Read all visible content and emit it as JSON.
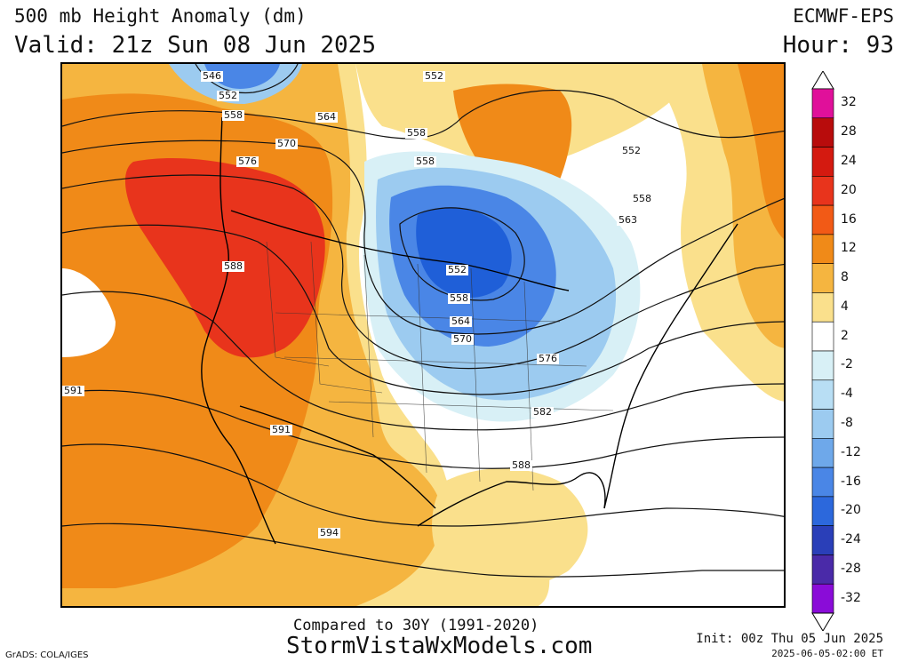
{
  "header": {
    "title": "500 mb Height Anomaly (dm)",
    "valid": "Valid: 21z Sun 08 Jun 2025",
    "model": "ECMWF-EPS",
    "hour": "Hour: 93"
  },
  "map": {
    "contour_labels": [
      "546",
      "552",
      "558",
      "564",
      "570",
      "576",
      "588",
      "591",
      "591",
      "594",
      "558",
      "558",
      "552",
      "552",
      "558",
      "564",
      "570",
      "576",
      "582",
      "588",
      "552",
      "558",
      "563"
    ],
    "anomaly_colors": {
      "strong_positive": "#e8341c",
      "positive": "#f08a18",
      "weak_positive": "#f5b540",
      "slight_positive": "#fae08c",
      "slight_negative": "#d8f0f6",
      "negative": "#9ccbf0",
      "strong_negative": "#4a86e6",
      "very_strong_negative": "#1f5fd8"
    }
  },
  "colorbar": {
    "ticks": [
      "32",
      "28",
      "24",
      "20",
      "16",
      "12",
      "8",
      "4",
      "2",
      "-2",
      "-4",
      "-8",
      "-12",
      "-16",
      "-20",
      "-24",
      "-28",
      "-32"
    ],
    "colors": [
      "#e0109a",
      "#b80c0c",
      "#d41a10",
      "#e8341c",
      "#f25a16",
      "#f08a18",
      "#f5b540",
      "#fae08c",
      "#ffffff",
      "#d8f0f6",
      "#b8def4",
      "#9ccbf0",
      "#6ea8ea",
      "#4a86e6",
      "#2c68dc",
      "#2a3fb8",
      "#4a2aa8",
      "#8a0cd8"
    ]
  },
  "footer": {
    "compare": "Compared to 30Y (1991-2020)",
    "site": "StormVistaWxModels.com",
    "init": "Init: 00z Thu 05 Jun 2025",
    "stamp": "2025-06-05-02:00 ET",
    "grads": "GrADS: COLA/IGES"
  }
}
